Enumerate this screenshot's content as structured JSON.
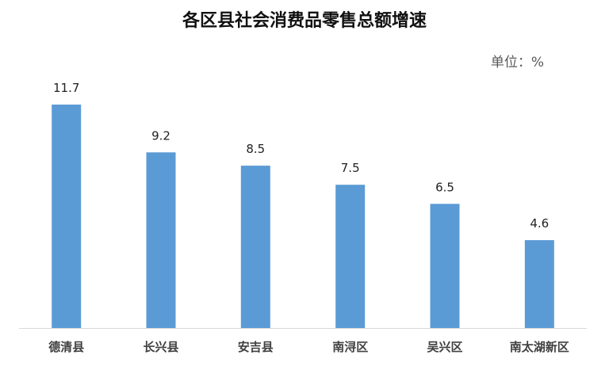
{
  "chart_data": {
    "type": "bar",
    "title": "各区县社会消费品零售总额增速",
    "unit": "单位：%",
    "categories": [
      "德清县",
      "长兴县",
      "安吉县",
      "南浔区",
      "吴兴区",
      "南太湖新区"
    ],
    "values": [
      11.7,
      9.2,
      8.5,
      7.5,
      6.5,
      4.6
    ],
    "value_labels": [
      "11.7",
      "9.2",
      "8.5",
      "7.5",
      "6.5",
      "4.6"
    ],
    "ylim": [
      0,
      11.7
    ],
    "grid": false,
    "legend": "none",
    "xlabel": "",
    "ylabel": "",
    "colors": {
      "bar": "#5B9BD5",
      "axis": "#D9D9D9"
    }
  }
}
